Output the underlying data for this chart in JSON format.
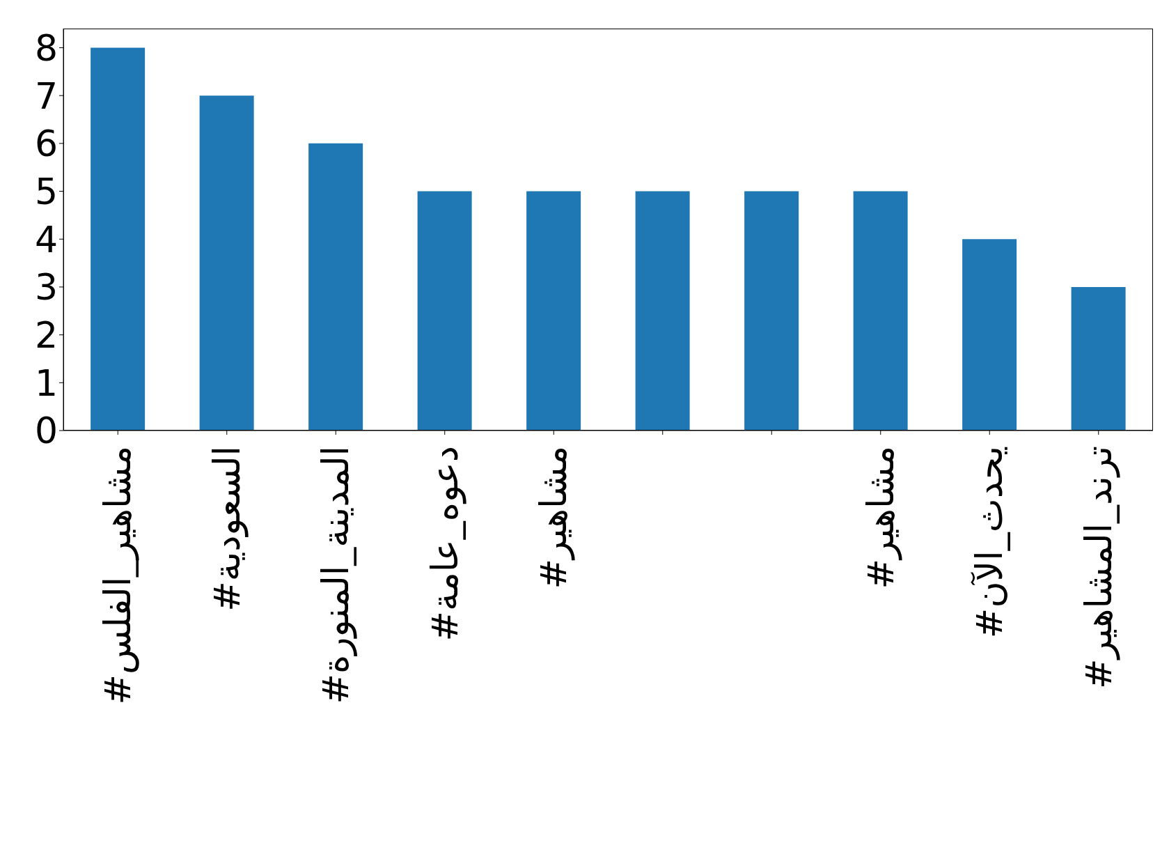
{
  "chart_data": {
    "type": "bar",
    "categories": [
      "#مشاهير_الفلس",
      "#السعودية",
      "#المدينة_المنورة",
      "#دعوه_عامة",
      "#مشاهير",
      null,
      null,
      "#مشاهير",
      "#يحدث_الآن",
      "#ترند_المشاهير"
    ],
    "values": [
      8,
      7,
      6,
      5,
      5,
      5,
      5,
      5,
      4,
      3
    ],
    "color": "#1f77b4",
    "ylim": [
      0,
      8.4
    ],
    "yticks": [
      0,
      1,
      2,
      3,
      4,
      5,
      6,
      7,
      8
    ],
    "grid": false,
    "legend": false
  }
}
